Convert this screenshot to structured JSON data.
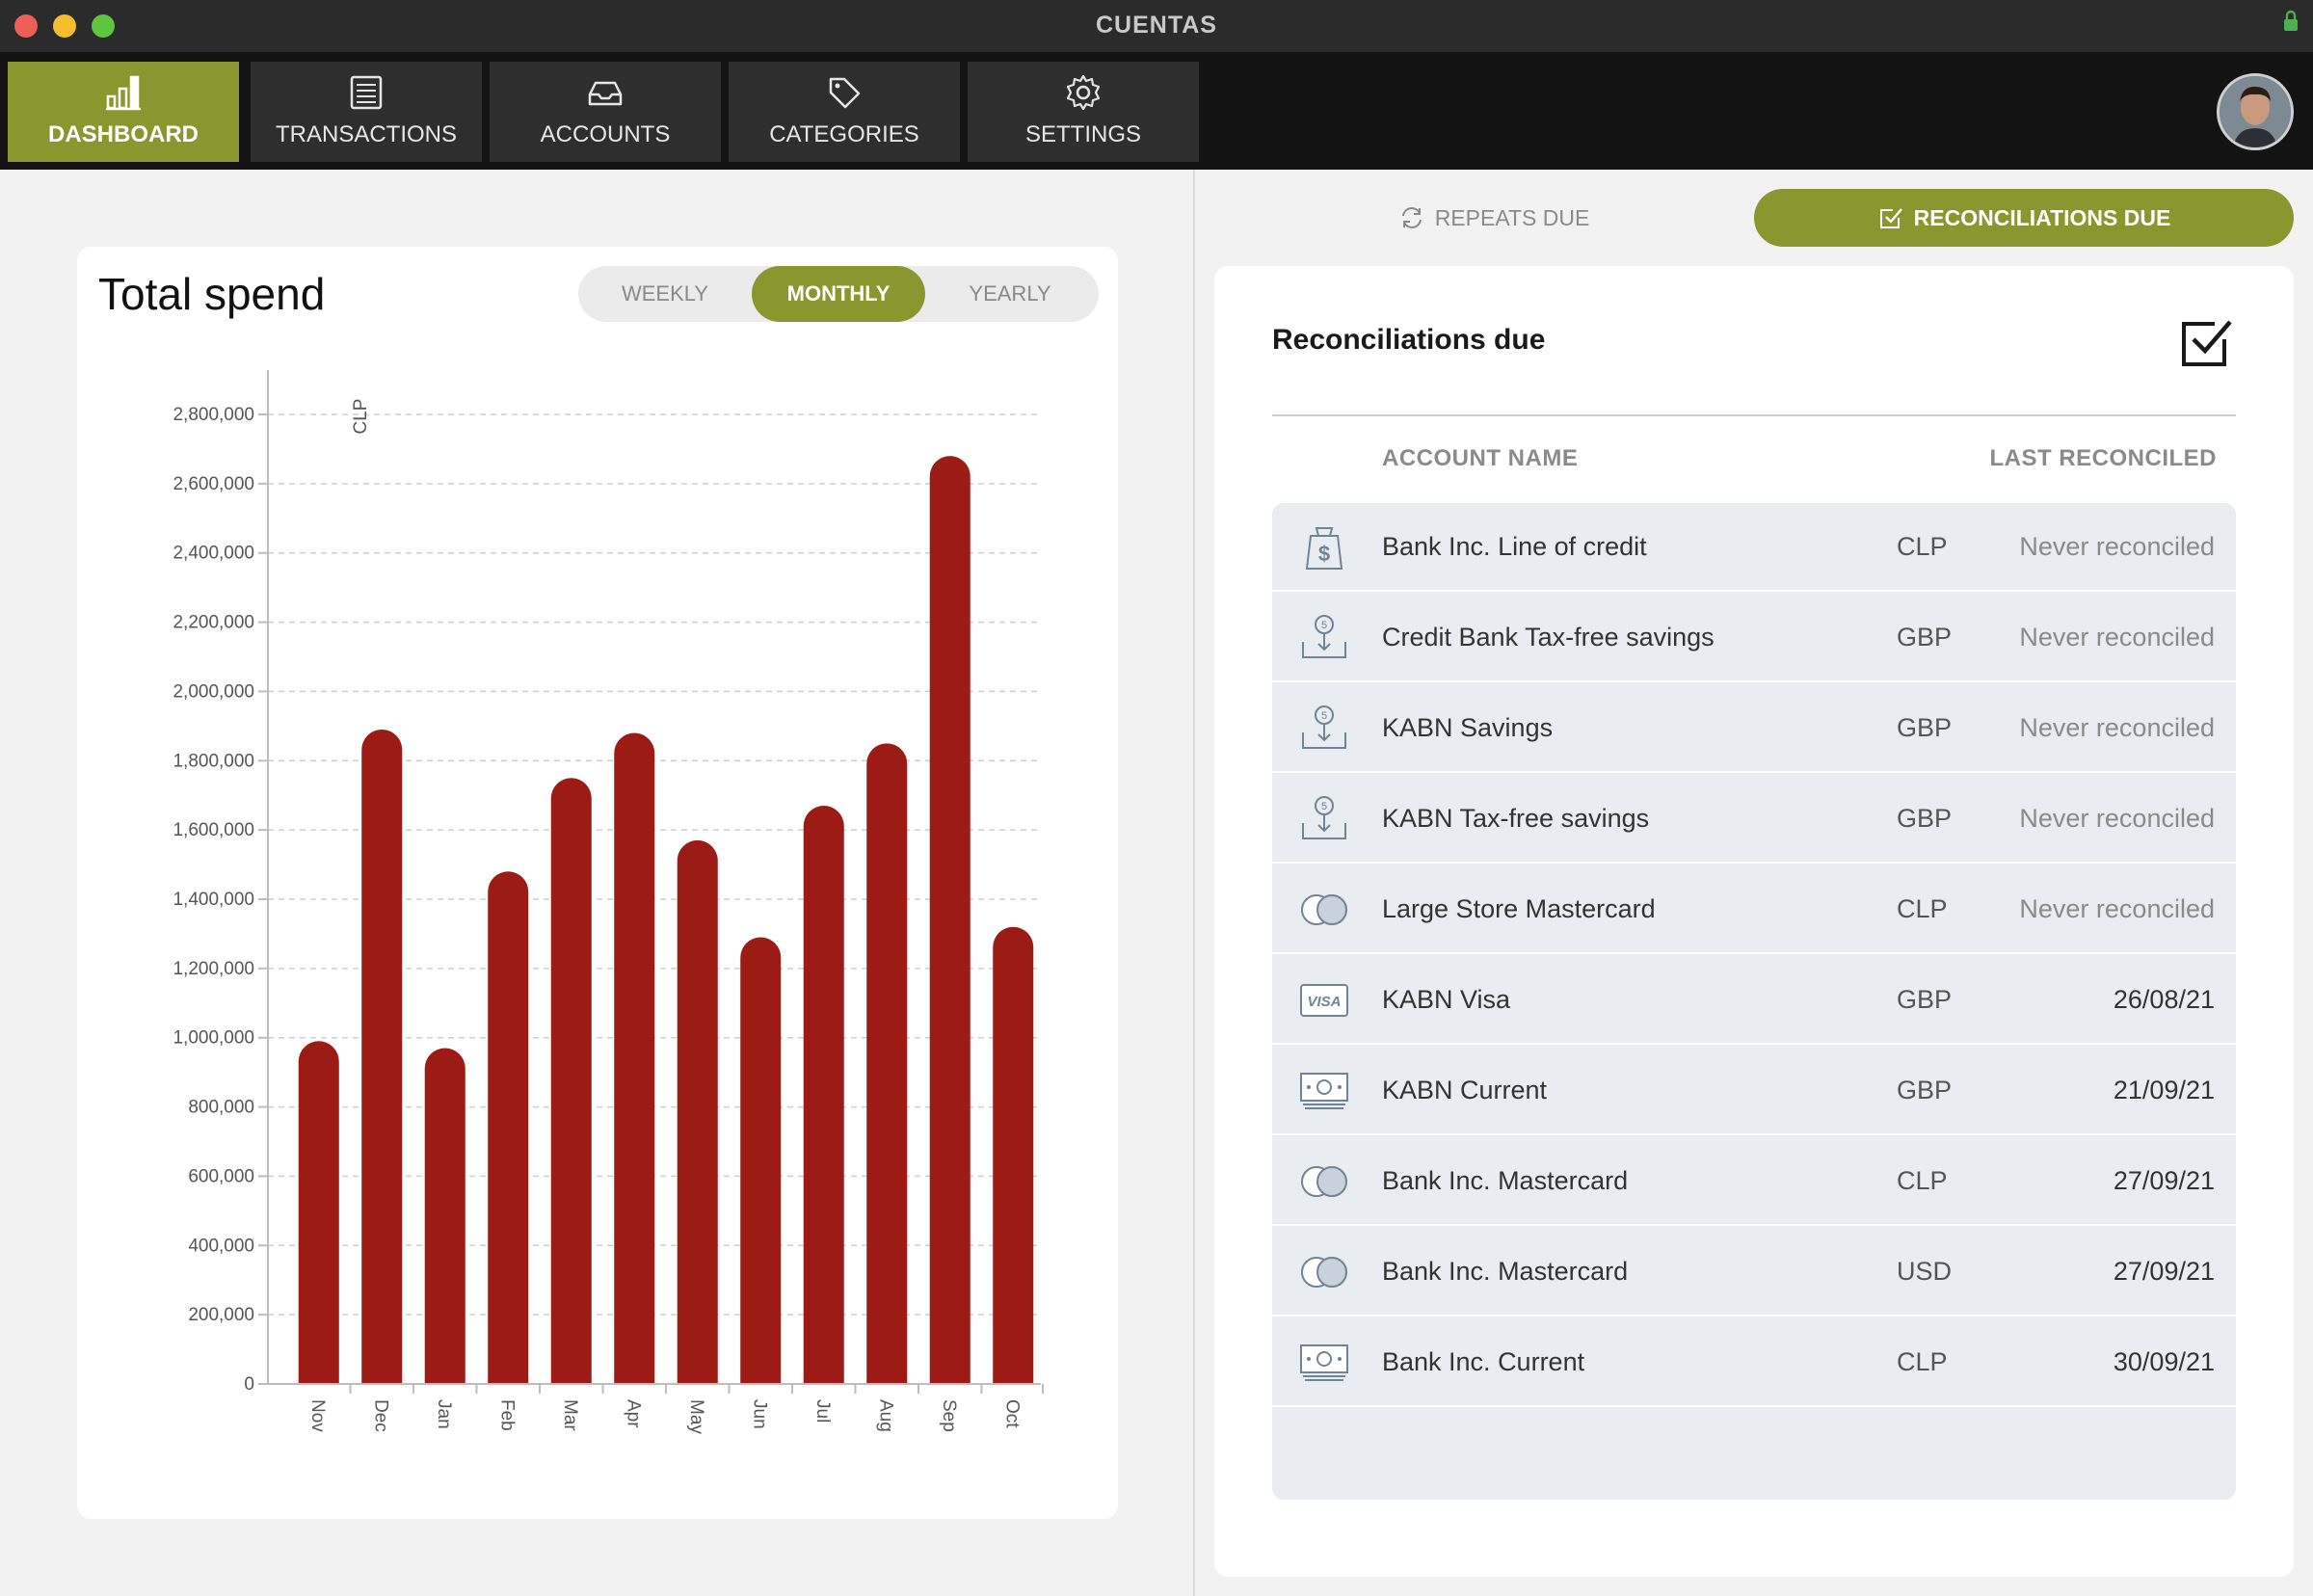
{
  "app": {
    "title": "CUENTAS"
  },
  "nav": {
    "tabs": [
      {
        "label": "DASHBOARD",
        "icon": "bar-chart-icon",
        "active": true
      },
      {
        "label": "TRANSACTIONS",
        "icon": "ledger-icon",
        "active": false
      },
      {
        "label": "ACCOUNTS",
        "icon": "inbox-tray-icon",
        "active": false
      },
      {
        "label": "CATEGORIES",
        "icon": "tag-icon",
        "active": false
      },
      {
        "label": "SETTINGS",
        "icon": "gear-icon",
        "active": false
      }
    ]
  },
  "colors": {
    "accent": "#8a962e",
    "bar": "#9c1c15",
    "nav_bg": "#131313",
    "tab_bg": "#2e2e2e"
  },
  "spend": {
    "title": "Total spend",
    "periods": {
      "weekly": "WEEKLY",
      "monthly": "MONTHLY",
      "yearly": "YEARLY"
    },
    "selected_period": "MONTHLY"
  },
  "chart_data": {
    "type": "bar",
    "title": "Total spend",
    "ylabel": "CLP",
    "xlabel": "",
    "categories": [
      "Nov",
      "Dec",
      "Jan",
      "Feb",
      "Mar",
      "Apr",
      "May",
      "Jun",
      "Jul",
      "Aug",
      "Sep",
      "Oct"
    ],
    "values": [
      990000,
      1890000,
      970000,
      1480000,
      1750000,
      1880000,
      1570000,
      1290000,
      1670000,
      1850000,
      2680000,
      1320000
    ],
    "ylim": [
      0,
      2800000
    ],
    "yticks": [
      "0",
      "200,000",
      "400,000",
      "600,000",
      "800,000",
      "1,000,000",
      "1,200,000",
      "1,400,000",
      "1,600,000",
      "1,800,000",
      "2,000,000",
      "2,200,000",
      "2,400,000",
      "2,600,000",
      "2,800,000"
    ],
    "grid": true,
    "color": "#9c1c15"
  },
  "right_tabs": {
    "repeats": "REPEATS DUE",
    "reconciliations": "RECONCILIATIONS DUE"
  },
  "reconciliations": {
    "title": "Reconciliations due",
    "columns": {
      "account_name": "ACCOUNT NAME",
      "last_reconciled": "LAST RECONCILED"
    },
    "rows": [
      {
        "name": "Bank Inc. Line of credit",
        "currency": "CLP",
        "last": "Never reconciled",
        "icon": "money-bag-icon"
      },
      {
        "name": "Credit Bank Tax-free savings",
        "currency": "GBP",
        "last": "Never reconciled",
        "icon": "savings-deposit-icon"
      },
      {
        "name": "KABN Savings",
        "currency": "GBP",
        "last": "Never reconciled",
        "icon": "savings-deposit-icon"
      },
      {
        "name": "KABN Tax-free savings",
        "currency": "GBP",
        "last": "Never reconciled",
        "icon": "savings-deposit-icon"
      },
      {
        "name": "Large Store Mastercard",
        "currency": "CLP",
        "last": "Never reconciled",
        "icon": "mastercard-icon"
      },
      {
        "name": "KABN Visa",
        "currency": "GBP",
        "last": "26/08/21",
        "icon": "visa-card-icon"
      },
      {
        "name": "KABN Current",
        "currency": "GBP",
        "last": "21/09/21",
        "icon": "banknotes-icon"
      },
      {
        "name": "Bank Inc. Mastercard",
        "currency": "CLP",
        "last": "27/09/21",
        "icon": "mastercard-icon"
      },
      {
        "name": "Bank Inc. Mastercard",
        "currency": "USD",
        "last": "27/09/21",
        "icon": "mastercard-icon"
      },
      {
        "name": "Bank Inc. Current",
        "currency": "CLP",
        "last": "30/09/21",
        "icon": "banknotes-icon"
      }
    ]
  }
}
